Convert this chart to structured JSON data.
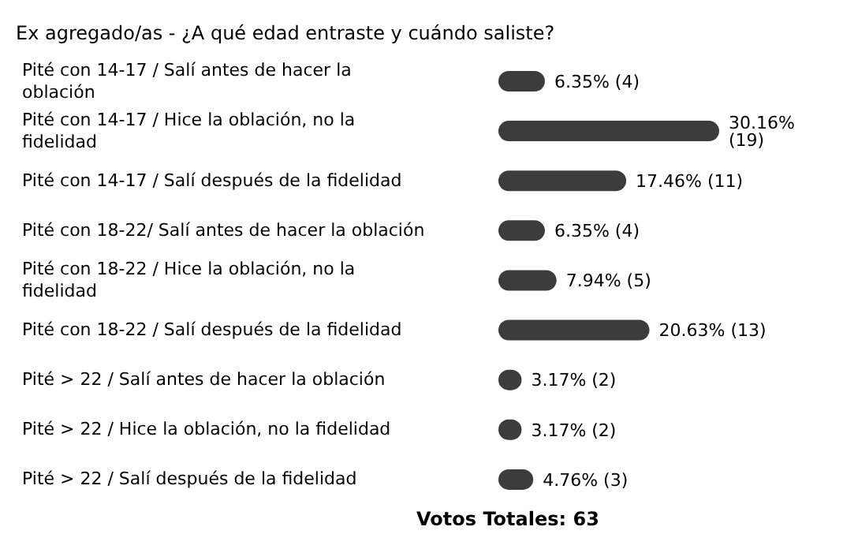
{
  "chart_data": {
    "type": "bar",
    "orientation": "horizontal",
    "title": "Ex agregado/as - ¿A qué edad entraste y cuándo saliste?",
    "categories": [
      "Pité con 14-17 / Salí antes de hacer la oblación",
      "Pité con 14-17 / Hice la oblación, no la fidelidad",
      "Pité con 14-17 / Salí después de la fidelidad",
      "Pité con 18-22/ Salí antes de hacer la oblación",
      "Pité con 18-22 / Hice la oblación, no la fidelidad",
      "Pité con 18-22 / Salí después de la fidelidad",
      "Pité > 22 / Salí antes de hacer la oblación",
      "Pité > 22 / Hice la oblación, no la fidelidad",
      "Pité > 22 / Salí después de la fidelidad"
    ],
    "values": [
      6.35,
      30.16,
      17.46,
      6.35,
      7.94,
      20.63,
      3.17,
      3.17,
      4.76
    ],
    "value_labels": [
      "6.35% (4)",
      "30.16% (19)",
      "17.46% (11)",
      "6.35% (4)",
      "7.94% (5)",
      "20.63% (13)",
      "3.17% (2)",
      "3.17% (2)",
      "4.76% (3)"
    ],
    "color": "#3c3c3c",
    "tick_labels": "y",
    "annotations": [
      "Votos Totales: 63"
    ]
  }
}
